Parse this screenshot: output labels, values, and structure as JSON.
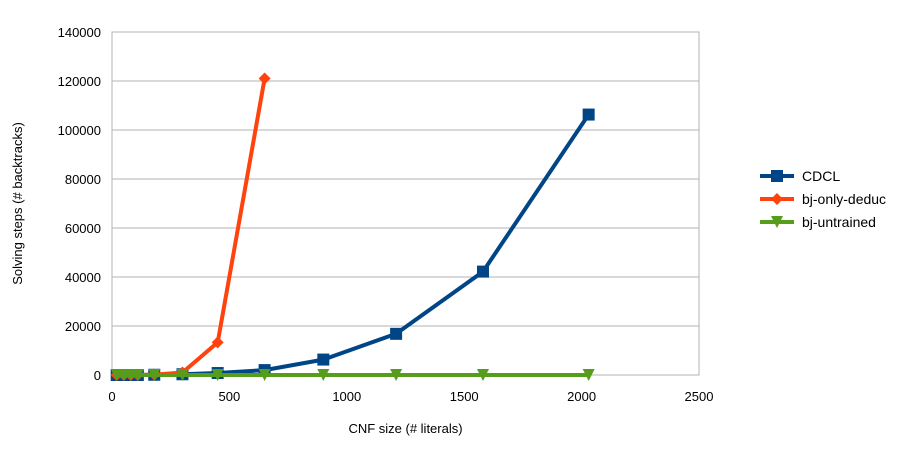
{
  "chart_data": {
    "type": "line",
    "title": "",
    "xlabel": "CNF size (# literals)",
    "ylabel": "Solving steps (# backtracks)",
    "xlim": [
      0,
      2500
    ],
    "ylim": [
      0,
      140000
    ],
    "xticks": [
      0,
      500,
      1000,
      1500,
      2000,
      2500
    ],
    "yticks": [
      0,
      20000,
      40000,
      60000,
      80000,
      100000,
      120000,
      140000
    ],
    "grid": "horizontal",
    "legend_position": "right",
    "series": [
      {
        "name": "CDCL",
        "color": "#004586",
        "marker": "square",
        "x": [
          20,
          50,
          80,
          110,
          180,
          300,
          450,
          650,
          900,
          1210,
          1580,
          2030
        ],
        "y": [
          0,
          0,
          0,
          0,
          100,
          300,
          800,
          2000,
          6300,
          16800,
          42200,
          106300
        ]
      },
      {
        "name": "bj-only-deduc",
        "color": "#ff420e",
        "marker": "diamond",
        "x": [
          20,
          50,
          80,
          110,
          180,
          300,
          450,
          650
        ],
        "y": [
          0,
          0,
          0,
          0,
          150,
          1000,
          13300,
          121000
        ]
      },
      {
        "name": "bj-untrained",
        "color": "#579d1c",
        "marker": "triangle-down",
        "x": [
          20,
          50,
          80,
          110,
          180,
          300,
          450,
          650,
          900,
          1210,
          1580,
          2030
        ],
        "y": [
          0,
          0,
          0,
          0,
          0,
          0,
          0,
          0,
          0,
          0,
          0,
          0
        ]
      }
    ]
  }
}
